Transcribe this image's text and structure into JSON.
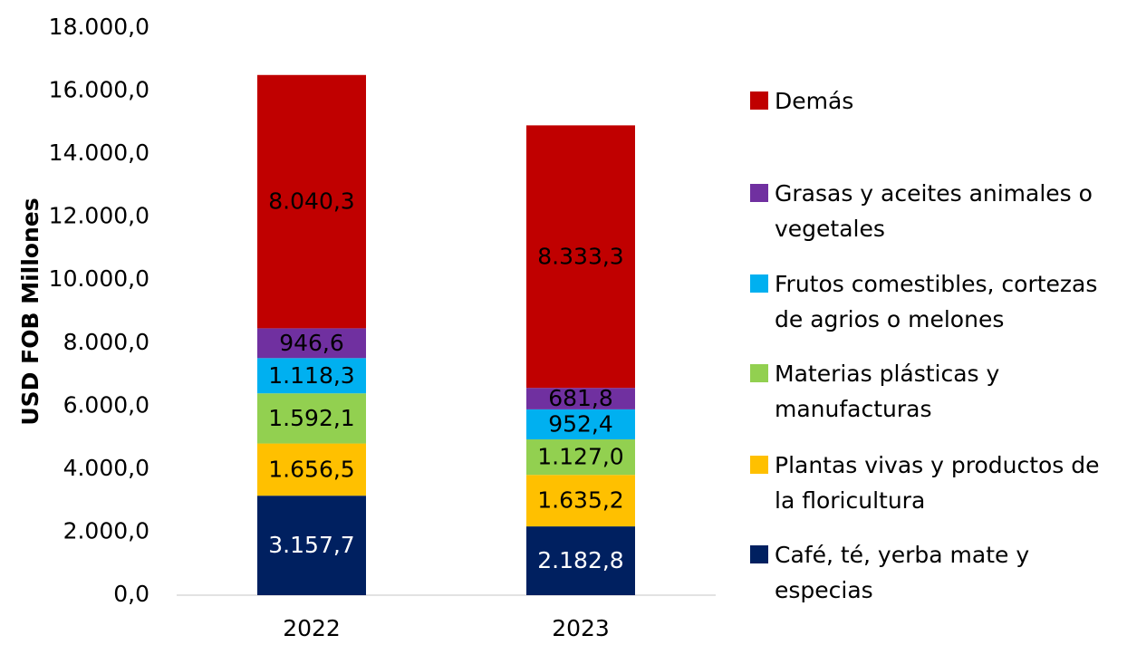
{
  "chart_data": {
    "type": "stacked_bar",
    "y_axis_label": "USD FOB Millones",
    "categories": [
      "2022",
      "2023"
    ],
    "ylim": [
      0,
      18000
    ],
    "yticks": [
      {
        "value": 0,
        "label": "0,0"
      },
      {
        "value": 2000,
        "label": "2.000,0"
      },
      {
        "value": 4000,
        "label": "4.000,0"
      },
      {
        "value": 6000,
        "label": "6.000,0"
      },
      {
        "value": 8000,
        "label": "8.000,0"
      },
      {
        "value": 10000,
        "label": "10.000,0"
      },
      {
        "value": 12000,
        "label": "12.000,0"
      },
      {
        "value": 14000,
        "label": "14.000,0"
      },
      {
        "value": 16000,
        "label": "16.000,0"
      },
      {
        "value": 18000,
        "label": "18.000,0"
      }
    ],
    "grid": false,
    "legend": "right",
    "series": [
      {
        "name": "Café, té, yerba mate y especias",
        "color": "#002060",
        "label_color": "#ffffff",
        "values": [
          3157.7,
          2182.8
        ],
        "value_labels": [
          "3.157,7",
          "2.182,8"
        ]
      },
      {
        "name": "Plantas vivas y productos de la floricultura",
        "color": "#ffc000",
        "label_color": "#000000",
        "values": [
          1656.5,
          1635.2
        ],
        "value_labels": [
          "1.656,5",
          "1.635,2"
        ]
      },
      {
        "name": "Materias plásticas y manufacturas",
        "color": "#92d050",
        "label_color": "#000000",
        "values": [
          1592.1,
          1127.0
        ],
        "value_labels": [
          "1.592,1",
          "1.127,0"
        ]
      },
      {
        "name": "Frutos comestibles, cortezas de agrios o melones",
        "color": "#00b0f0",
        "label_color": "#000000",
        "values": [
          1118.3,
          952.4
        ],
        "value_labels": [
          "1.118,3",
          "952,4"
        ]
      },
      {
        "name": "Grasas y aceites animales o vegetales",
        "color": "#7030a0",
        "label_color": "#000000",
        "values": [
          946.6,
          681.8
        ],
        "value_labels": [
          "946,6",
          "681,8"
        ]
      },
      {
        "name": "Demás",
        "color": "#c00000",
        "label_color": "#000000",
        "values": [
          8040.3,
          8333.3
        ],
        "value_labels": [
          "8.040,3",
          "8.333,3"
        ]
      }
    ]
  }
}
